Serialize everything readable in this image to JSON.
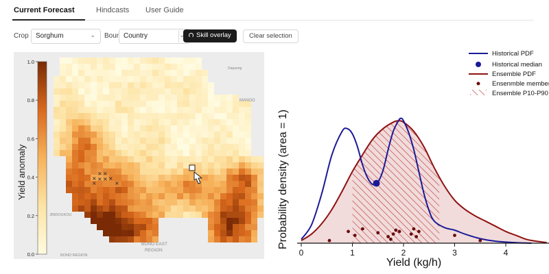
{
  "tabs": {
    "current_forecast": "Current Forecast",
    "hindcasts": "Hindcasts",
    "user_guide": "User Guide"
  },
  "controls": {
    "crop_label": "Crop",
    "crop_value": "Sorghum",
    "boundary_label": "Boundary",
    "boundary_value": "Country",
    "skill_overlay": "Skill overlay",
    "clear_selection": "Clear selection"
  },
  "map": {
    "colorbar_label": "Yield anomaly",
    "colorbar_ticks": [
      "1.0",
      "0.8",
      "0.6",
      "0.4",
      "0.2",
      "0.0"
    ],
    "place_labels": {
      "mango": "MANGO",
      "dapaong": "Dapaong",
      "jinoukou": "JINDOUKOU",
      "bono_east": "BONO EAST",
      "region": "REGION",
      "bono_region": "BONO REGION"
    },
    "colors": {
      "low": "#fffbe0",
      "mid": "#f2a23a",
      "high": "#7a2a05"
    }
  },
  "chart_data": {
    "type": "line",
    "xlabel": "Yield (kg/h)",
    "ylabel": "Probability density (area = 1)",
    "xlim": [
      0,
      4.7
    ],
    "xticks": [
      "0",
      "1",
      "2",
      "3",
      "4"
    ],
    "legend": {
      "placement": "top-right",
      "historical_pdf": "Historical PDF",
      "historical_median": "Historical median",
      "ensemble_pdf": "Ensemble PDF",
      "ensemble_member": "Ensenmble member",
      "ensemble_p10_p90": "Ensemble P10-P90"
    },
    "historical_pdf": {
      "x": [
        0,
        0.2,
        0.4,
        0.6,
        0.8,
        0.9,
        1.0,
        1.1,
        1.2,
        1.3,
        1.4,
        1.5,
        1.6,
        1.7,
        1.8,
        1.9,
        1.95,
        2.0,
        2.1,
        2.2,
        2.3,
        2.4,
        2.5,
        2.6,
        2.8,
        3.0,
        3.2,
        3.5,
        3.8,
        4.2,
        4.5
      ],
      "y": [
        0.03,
        0.14,
        0.38,
        0.68,
        0.86,
        0.88,
        0.84,
        0.74,
        0.6,
        0.5,
        0.45,
        0.47,
        0.56,
        0.72,
        0.86,
        0.94,
        0.96,
        0.94,
        0.85,
        0.72,
        0.55,
        0.38,
        0.25,
        0.17,
        0.12,
        0.1,
        0.07,
        0.035,
        0.015,
        0.004,
        0
      ]
    },
    "historical_median": {
      "x": 1.47,
      "y": 0.46
    },
    "ensemble_pdf": {
      "x": [
        0,
        0.2,
        0.4,
        0.6,
        0.8,
        1.0,
        1.2,
        1.4,
        1.6,
        1.8,
        1.9,
        2.0,
        2.2,
        2.4,
        2.6,
        2.8,
        3.0,
        3.2,
        3.4,
        3.6,
        3.8,
        4.0,
        4.2,
        4.4,
        4.6,
        4.8
      ],
      "y": [
        0.02,
        0.07,
        0.15,
        0.26,
        0.4,
        0.55,
        0.68,
        0.8,
        0.88,
        0.93,
        0.94,
        0.93,
        0.86,
        0.74,
        0.58,
        0.44,
        0.33,
        0.26,
        0.21,
        0.17,
        0.13,
        0.09,
        0.06,
        0.03,
        0.015,
        0.005
      ]
    },
    "ensemble_p10_p90": [
      1.0,
      2.7
    ],
    "ensemble_members": {
      "x": [
        0.55,
        0.92,
        1.05,
        1.2,
        1.5,
        1.7,
        1.75,
        1.8,
        1.85,
        1.92,
        2.15,
        2.2,
        2.25,
        2.3,
        3.0,
        3.5
      ],
      "y": [
        0.02,
        0.09,
        0.06,
        0.11,
        0.08,
        0.05,
        0.03,
        0.07,
        0.1,
        0.09,
        0.07,
        0.11,
        0.05,
        0.09,
        0.06,
        0.02
      ]
    },
    "colors": {
      "historical": "#1a1a96",
      "ensemble": "#8f1111",
      "fill": "#efd5d5"
    }
  }
}
